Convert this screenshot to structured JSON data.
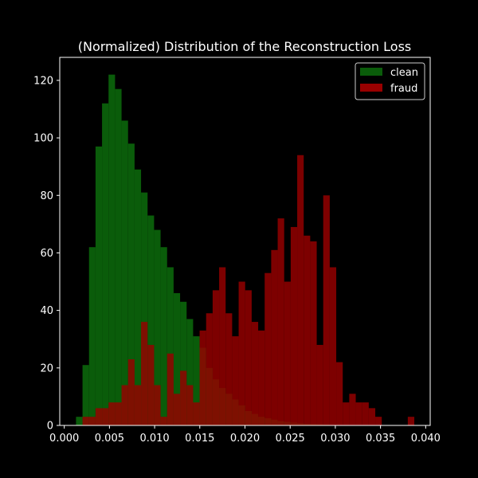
{
  "chart_data": {
    "type": "bar",
    "title": "(Normalized) Distribution of the Reconstruction Loss",
    "xlabel": "",
    "ylabel": "",
    "xlim": [
      -0.0005,
      0.0405
    ],
    "ylim": [
      0,
      128
    ],
    "x_ticks": [
      "0.000",
      "0.005",
      "0.010",
      "0.015",
      "0.020",
      "0.025",
      "0.030",
      "0.035",
      "0.040"
    ],
    "y_ticks": [
      "0",
      "20",
      "40",
      "60",
      "80",
      "100",
      "120"
    ],
    "legend_position": "top-right",
    "grid": false,
    "series": [
      {
        "name": "clean",
        "color": "#0a5c0a",
        "bin_width": 0.00072,
        "bins": [
          [
            0.0013,
            3
          ],
          [
            0.00202,
            21
          ],
          [
            0.00274,
            62
          ],
          [
            0.00346,
            97
          ],
          [
            0.00418,
            112
          ],
          [
            0.0049,
            122
          ],
          [
            0.00562,
            117
          ],
          [
            0.00634,
            106
          ],
          [
            0.00706,
            98
          ],
          [
            0.00778,
            89
          ],
          [
            0.0085,
            81
          ],
          [
            0.00922,
            73
          ],
          [
            0.00994,
            68
          ],
          [
            0.01066,
            62
          ],
          [
            0.01138,
            55
          ],
          [
            0.0121,
            46
          ],
          [
            0.01282,
            43
          ],
          [
            0.01354,
            37
          ],
          [
            0.01426,
            31
          ],
          [
            0.01498,
            27
          ],
          [
            0.0157,
            20
          ],
          [
            0.01642,
            16
          ],
          [
            0.01714,
            13
          ],
          [
            0.01786,
            11
          ],
          [
            0.01858,
            9
          ],
          [
            0.0193,
            7
          ],
          [
            0.02002,
            5
          ],
          [
            0.02074,
            4
          ],
          [
            0.02146,
            3
          ],
          [
            0.02218,
            2.5
          ],
          [
            0.0229,
            2
          ],
          [
            0.02362,
            1.5
          ],
          [
            0.02434,
            1.2
          ],
          [
            0.02506,
            1
          ],
          [
            0.02578,
            0.8
          ],
          [
            0.0265,
            0.6
          ],
          [
            0.02722,
            0.5
          ],
          [
            0.02794,
            0.4
          ],
          [
            0.02866,
            0.3
          ]
        ]
      },
      {
        "name": "fraud",
        "color": "#990000",
        "bin_width": 0.00072,
        "bins": [
          [
            0.00202,
            3
          ],
          [
            0.00274,
            3
          ],
          [
            0.00346,
            6
          ],
          [
            0.00418,
            6
          ],
          [
            0.0049,
            8
          ],
          [
            0.00562,
            8
          ],
          [
            0.00634,
            14
          ],
          [
            0.00706,
            23
          ],
          [
            0.00778,
            14
          ],
          [
            0.0085,
            36
          ],
          [
            0.00922,
            28
          ],
          [
            0.00994,
            14
          ],
          [
            0.01066,
            3
          ],
          [
            0.01138,
            25
          ],
          [
            0.0121,
            11
          ],
          [
            0.01282,
            19
          ],
          [
            0.01354,
            14
          ],
          [
            0.01426,
            8
          ],
          [
            0.01498,
            33
          ],
          [
            0.0157,
            39
          ],
          [
            0.01642,
            47
          ],
          [
            0.01714,
            55
          ],
          [
            0.01786,
            39
          ],
          [
            0.01858,
            31
          ],
          [
            0.0193,
            50
          ],
          [
            0.02002,
            47
          ],
          [
            0.02074,
            36
          ],
          [
            0.02146,
            33
          ],
          [
            0.02218,
            53
          ],
          [
            0.0229,
            61
          ],
          [
            0.02362,
            72
          ],
          [
            0.02434,
            50
          ],
          [
            0.02506,
            69
          ],
          [
            0.02578,
            94
          ],
          [
            0.0265,
            66
          ],
          [
            0.02722,
            64
          ],
          [
            0.02794,
            28
          ],
          [
            0.02866,
            80
          ],
          [
            0.02938,
            55
          ],
          [
            0.0301,
            22
          ],
          [
            0.03082,
            8
          ],
          [
            0.03154,
            11
          ],
          [
            0.03226,
            8
          ],
          [
            0.03298,
            8
          ],
          [
            0.0337,
            6
          ],
          [
            0.03442,
            3
          ],
          [
            0.03802,
            3
          ]
        ]
      }
    ]
  }
}
